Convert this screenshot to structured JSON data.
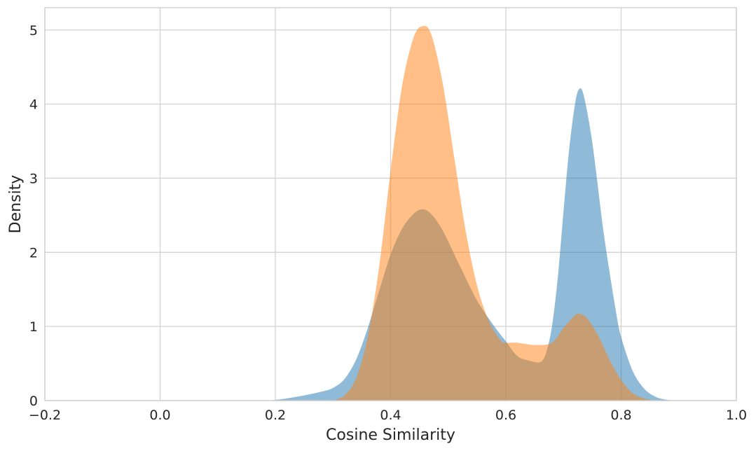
{
  "chart_data": {
    "type": "area",
    "title": "",
    "xlabel": "Cosine Similarity",
    "ylabel": "Density",
    "xlim": [
      -0.2,
      1.0
    ],
    "ylim": [
      0,
      5.3
    ],
    "xticks": [
      -0.2,
      0.0,
      0.2,
      0.4,
      0.6,
      0.8,
      1.0
    ],
    "xtick_labels": [
      "−0.2",
      "0.0",
      "0.2",
      "0.4",
      "0.6",
      "0.8",
      "1.0"
    ],
    "yticks": [
      0,
      1,
      2,
      3,
      4,
      5
    ],
    "ytick_labels": [
      "0",
      "1",
      "2",
      "3",
      "4",
      "5"
    ],
    "grid": true,
    "legend": "none",
    "series": [
      {
        "color": "#1f77b4",
        "opacity": 0.5,
        "x": [
          0.18,
          0.2,
          0.22,
          0.25,
          0.28,
          0.3,
          0.32,
          0.34,
          0.36,
          0.38,
          0.4,
          0.42,
          0.44,
          0.455,
          0.47,
          0.49,
          0.52,
          0.55,
          0.58,
          0.6,
          0.62,
          0.64,
          0.66,
          0.67,
          0.68,
          0.69,
          0.7,
          0.71,
          0.72,
          0.727,
          0.735,
          0.75,
          0.77,
          0.79,
          0.8,
          0.82,
          0.84,
          0.86,
          0.88,
          0.9
        ],
        "y": [
          0.0,
          0.01,
          0.03,
          0.07,
          0.12,
          0.17,
          0.29,
          0.55,
          0.97,
          1.48,
          1.97,
          2.32,
          2.52,
          2.58,
          2.52,
          2.3,
          1.82,
          1.35,
          1.0,
          0.8,
          0.6,
          0.54,
          0.52,
          0.65,
          1.0,
          1.65,
          2.55,
          3.4,
          4.0,
          4.2,
          4.12,
          3.48,
          2.25,
          1.25,
          0.86,
          0.4,
          0.16,
          0.05,
          0.01,
          0.0
        ]
      },
      {
        "color": "#ff7f0e",
        "opacity": 0.5,
        "x": [
          0.3,
          0.32,
          0.34,
          0.36,
          0.38,
          0.4,
          0.42,
          0.44,
          0.455,
          0.47,
          0.49,
          0.51,
          0.53,
          0.55,
          0.57,
          0.59,
          0.6,
          0.62,
          0.65,
          0.68,
          0.7,
          0.72,
          0.727,
          0.74,
          0.76,
          0.78,
          0.8,
          0.82,
          0.84,
          0.86
        ],
        "y": [
          0.0,
          0.07,
          0.3,
          0.85,
          1.8,
          3.1,
          4.25,
          4.9,
          5.05,
          4.95,
          4.3,
          3.3,
          2.3,
          1.55,
          1.08,
          0.82,
          0.78,
          0.78,
          0.75,
          0.78,
          0.98,
          1.15,
          1.17,
          1.12,
          0.88,
          0.55,
          0.28,
          0.1,
          0.03,
          0.0
        ]
      }
    ]
  }
}
